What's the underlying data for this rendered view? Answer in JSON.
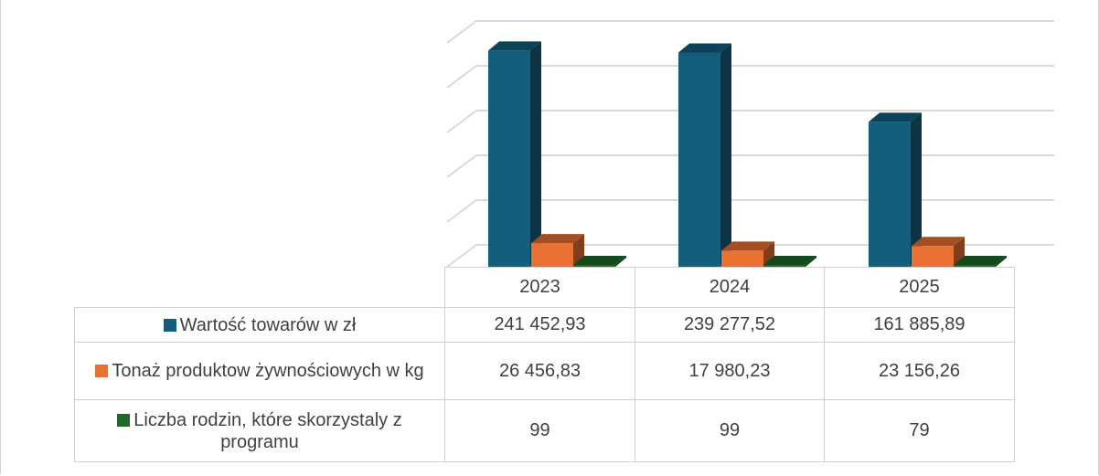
{
  "chart_data": {
    "type": "bar",
    "categories": [
      "2023",
      "2024",
      "2025"
    ],
    "series": [
      {
        "name": "Wartość towarów w zł",
        "values": [
          241452.93,
          239277.52,
          161885.89
        ],
        "color": "#145e7d"
      },
      {
        "name": "Tonaż produktow żywnościowych w kg",
        "values": [
          26456.83,
          17980.23,
          23156.26
        ],
        "color": "#e97132"
      },
      {
        "name": "Liczba rodzin, które skorzystaly z programu",
        "values": [
          99,
          99,
          79
        ],
        "color": "#1e6b28"
      }
    ],
    "table_values": [
      [
        "241 452,93",
        "239 277,52",
        "161 885,89"
      ],
      [
        "26 456,83",
        "17 980,23",
        "23 156,26"
      ],
      [
        "99",
        "99",
        "79"
      ]
    ],
    "ylim": [
      0,
      250000
    ],
    "grid": true,
    "legend": "data-table"
  }
}
